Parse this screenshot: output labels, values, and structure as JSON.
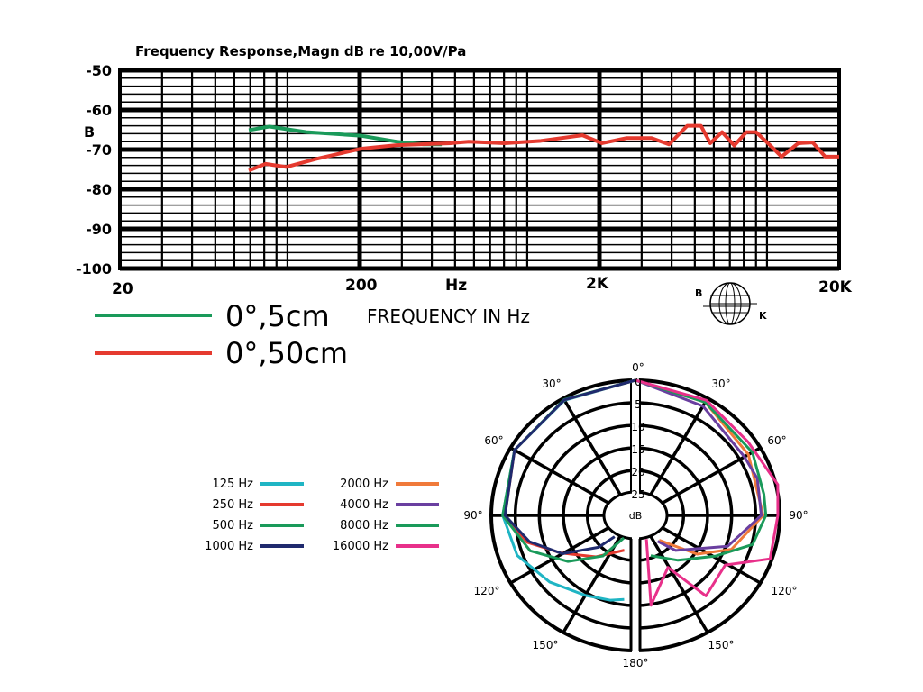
{
  "chart_data": [
    {
      "type": "line",
      "title": "Frequency Response,Magn dB re 10,00V/Pa",
      "ylabel": "B",
      "xlabel": "FREQUENCY IN Hz",
      "x_unit_label": "Hz",
      "x_scale": "log",
      "xlim": [
        20,
        20000
      ],
      "ylim": [
        -100,
        -50
      ],
      "x_tick_labels": [
        "20",
        "200",
        "2K",
        "20K"
      ],
      "y_tick_labels": [
        "-50",
        "-60",
        "-70",
        "-80",
        "-90",
        "-100"
      ],
      "grid": true,
      "legend_placement": "bottom-left",
      "series": [
        {
          "name": "0°,5cm",
          "color": "#1a9a5a",
          "x": [
            69,
            84,
            120,
            202,
            285,
            370,
            440
          ],
          "y": [
            -65.1,
            -64.2,
            -65.6,
            -66.5,
            -68.0,
            -68.7,
            -68.7
          ]
        },
        {
          "name": "0°,50cm",
          "color": "#e53a2f",
          "x": [
            69,
            81,
            99,
            131,
            202,
            285,
            479,
            570,
            805,
            1140,
            1700,
            2050,
            2600,
            3300,
            3900,
            4650,
            5300,
            5800,
            6500,
            7300,
            8200,
            9000,
            10300,
            11500,
            13500,
            15500,
            17500,
            20000
          ],
          "y": [
            -75.3,
            -73.6,
            -74.4,
            -72.4,
            -69.8,
            -68.9,
            -68.4,
            -68.0,
            -68.4,
            -67.8,
            -66.4,
            -68.4,
            -67.1,
            -67.1,
            -68.7,
            -64.0,
            -64.0,
            -68.4,
            -65.6,
            -69.0,
            -65.6,
            -65.6,
            -68.9,
            -71.8,
            -68.4,
            -68.2,
            -71.8,
            -71.8
          ]
        }
      ]
    },
    {
      "type": "polar",
      "unit_label": "dB",
      "angle_labels": [
        "0°",
        "30°",
        "60°",
        "90°",
        "120°",
        "150°",
        "180°",
        "30°",
        "60°",
        "90°",
        "120°",
        "150°"
      ],
      "radial_labels": [
        "0",
        "5",
        "10",
        "15",
        "20",
        "25"
      ],
      "series": [
        {
          "name": "125 Hz",
          "color": "#1fb5c4",
          "side": "left",
          "angle": [
            0,
            30,
            60,
            90,
            110,
            130,
            150,
            165,
            173
          ],
          "db": [
            0,
            0.5,
            1,
            2.5,
            4,
            7,
            9.5,
            10.5,
            11.2
          ]
        },
        {
          "name": "250 Hz",
          "color": "#e53a2f",
          "side": "left",
          "angle": [
            0,
            30,
            60,
            90,
            105,
            119,
            140,
            165
          ],
          "db": [
            0,
            0.4,
            1,
            3,
            7,
            12.8,
            18,
            22
          ]
        },
        {
          "name": "500 Hz",
          "color": "#1a9a5a",
          "side": "left",
          "angle": [
            0,
            30,
            60,
            90,
            110,
            127,
            145,
            158
          ],
          "db": [
            0,
            0.3,
            1,
            2.5,
            7,
            13,
            19,
            24.6
          ]
        },
        {
          "name": "1000 Hz",
          "color": "#1f2a6e",
          "side": "left",
          "angle": [
            0,
            30,
            60,
            90,
            105,
            120,
            135,
            142
          ],
          "db": [
            0,
            0.4,
            1,
            3,
            7.5,
            13,
            20,
            24
          ]
        },
        {
          "name": "2000 Hz",
          "color": "#f07a3a",
          "side": "right",
          "angle": [
            0,
            30,
            60,
            90,
            111,
            125,
            142
          ],
          "db": [
            0,
            1,
            3,
            3.6,
            9,
            15,
            23
          ]
        },
        {
          "name": "4000 Hz",
          "color": "#6a3fa0",
          "side": "right",
          "angle": [
            0,
            30,
            60,
            72,
            90,
            110,
            135,
            145
          ],
          "db": [
            0,
            2,
            4,
            3.5,
            4,
            10,
            19,
            23
          ]
        },
        {
          "name": "8000 Hz",
          "color": "#1a9a5a",
          "side": "right",
          "angle": [
            0,
            30,
            60,
            80,
            90,
            105,
            119,
            140,
            162
          ],
          "db": [
            0,
            1,
            2,
            3,
            3,
            5,
            11.4,
            17,
            20.6
          ]
        },
        {
          "name": "16000 Hz",
          "color": "#e8308a",
          "side": "right",
          "angle": [
            0,
            30,
            55,
            77,
            90,
            109,
            121,
            141,
            151,
            171,
            160
          ],
          "db": [
            0,
            0.5,
            1.5,
            -0.4,
            0.4,
            0.4,
            8.6,
            7,
            16.8,
            9.8,
            24.4
          ]
        }
      ]
    }
  ],
  "legend_polar": [
    "125 Hz",
    "250 Hz",
    "500 Hz",
    "1000 Hz",
    "2000 Hz",
    "4000 Hz",
    "8000 Hz",
    "16000 Hz"
  ],
  "logo": {
    "left": "B",
    "right": "K"
  }
}
